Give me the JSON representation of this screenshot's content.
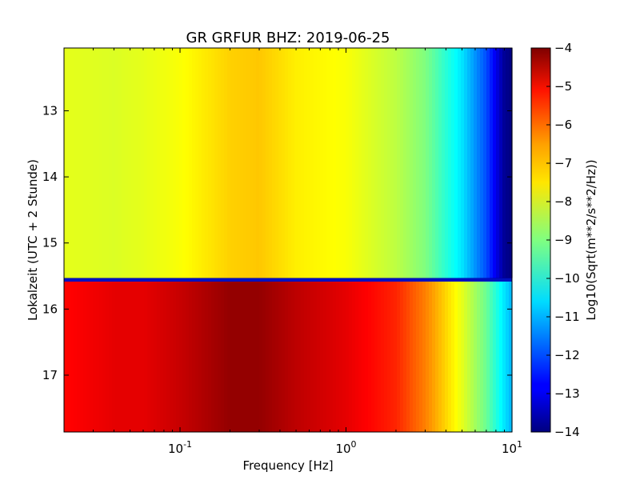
{
  "chart_data": {
    "type": "heatmap",
    "title": "GR GRFUR BHZ: 2019-06-25",
    "xlabel": "Frequency [Hz]",
    "ylabel": "Lokalzeit (UTC + 2 Stunde)",
    "x_scale": "log",
    "xlim": [
      0.02,
      10
    ],
    "ylim": [
      17.86,
      12.05
    ],
    "x_ticks": [
      {
        "value": 0.1,
        "base": "10",
        "exp": "-1"
      },
      {
        "value": 1,
        "base": "10",
        "exp": "0"
      },
      {
        "value": 10,
        "base": "10",
        "exp": "1"
      }
    ],
    "y_ticks": [
      13,
      14,
      15,
      16,
      17
    ],
    "colorbar": {
      "label": "Log10(Sqrt(m**2/s**2/Hz))",
      "range": [
        -14,
        -4
      ],
      "ticks": [
        -4,
        -5,
        -6,
        -7,
        -8,
        -9,
        -10,
        -11,
        -12,
        -13,
        -14
      ],
      "colormap": "jet"
    },
    "gap_time": 15.56,
    "time_blocks": [
      {
        "time_range": [
          12.05,
          15.53
        ],
        "profile": [
          {
            "freq": 0.02,
            "value": -8.0
          },
          {
            "freq": 0.04,
            "value": -8.1
          },
          {
            "freq": 0.06,
            "value": -8.0
          },
          {
            "freq": 0.1,
            "value": -7.8
          },
          {
            "freq": 0.2,
            "value": -7.3
          },
          {
            "freq": 0.3,
            "value": -7.2
          },
          {
            "freq": 0.5,
            "value": -7.6
          },
          {
            "freq": 1,
            "value": -7.8
          },
          {
            "freq": 2,
            "value": -8.4
          },
          {
            "freq": 3,
            "value": -9.0
          },
          {
            "freq": 5,
            "value": -10.5
          },
          {
            "freq": 7,
            "value": -12.0
          },
          {
            "freq": 9,
            "value": -13.8
          },
          {
            "freq": 10,
            "value": -14.0
          }
        ]
      },
      {
        "time_range": [
          15.58,
          17.86
        ],
        "profile": [
          {
            "freq": 0.02,
            "value": -5.3
          },
          {
            "freq": 0.04,
            "value": -5.0
          },
          {
            "freq": 0.06,
            "value": -5.0
          },
          {
            "freq": 0.1,
            "value": -4.7
          },
          {
            "freq": 0.2,
            "value": -4.2
          },
          {
            "freq": 0.3,
            "value": -4.2
          },
          {
            "freq": 0.5,
            "value": -4.6
          },
          {
            "freq": 1,
            "value": -5.0
          },
          {
            "freq": 2,
            "value": -5.6
          },
          {
            "freq": 3,
            "value": -6.5
          },
          {
            "freq": 5,
            "value": -8.0
          },
          {
            "freq": 7,
            "value": -9.2
          },
          {
            "freq": 9,
            "value": -10.5
          },
          {
            "freq": 10,
            "value": -11.0
          }
        ]
      }
    ]
  }
}
